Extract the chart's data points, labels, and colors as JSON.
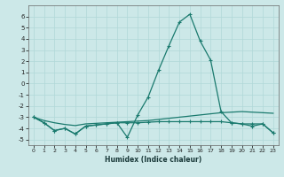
{
  "xlabel": "Humidex (Indice chaleur)",
  "x": [
    0,
    1,
    2,
    3,
    4,
    5,
    6,
    7,
    8,
    9,
    10,
    11,
    12,
    13,
    14,
    15,
    16,
    17,
    18,
    19,
    20,
    21,
    22,
    23
  ],
  "line_peak": [
    -3.0,
    -3.5,
    -4.2,
    -4.0,
    -4.5,
    -3.8,
    -3.7,
    -3.6,
    -3.5,
    -4.8,
    -2.8,
    -1.2,
    1.2,
    3.4,
    5.5,
    6.2,
    3.8,
    2.1,
    -2.5,
    -3.5,
    -3.6,
    -3.8,
    -3.6,
    -4.4
  ],
  "line_flat1": [
    -3.0,
    -3.3,
    -3.5,
    -3.65,
    -3.75,
    -3.6,
    -3.55,
    -3.5,
    -3.45,
    -3.4,
    -3.35,
    -3.3,
    -3.2,
    -3.1,
    -3.0,
    -2.9,
    -2.8,
    -2.7,
    -2.6,
    -2.55,
    -2.5,
    -2.55,
    -2.6,
    -2.65
  ],
  "line_flat2": [
    -3.0,
    -3.5,
    -4.2,
    -4.0,
    -4.5,
    -3.8,
    -3.7,
    -3.6,
    -3.5,
    -3.5,
    -3.5,
    -3.45,
    -3.4,
    -3.4,
    -3.4,
    -3.4,
    -3.4,
    -3.4,
    -3.4,
    -3.5,
    -3.6,
    -3.6,
    -3.6,
    -4.4
  ],
  "line_color": "#1a7a6e",
  "bg_color": "#cce8e8",
  "grid_color": "#b0d8d8",
  "ylim": [
    -5.5,
    7.0
  ],
  "yticks": [
    -5,
    -4,
    -3,
    -2,
    -1,
    0,
    1,
    2,
    3,
    4,
    5,
    6
  ],
  "xlim": [
    -0.5,
    23.5
  ],
  "xtick_labels": [
    "0",
    "1",
    "2",
    "3",
    "4",
    "5",
    "6",
    "7",
    "8",
    "9",
    "10",
    "11",
    "12",
    "13",
    "14",
    "15",
    "16",
    "17",
    "18",
    "19",
    "20",
    "21",
    "22",
    "23"
  ]
}
